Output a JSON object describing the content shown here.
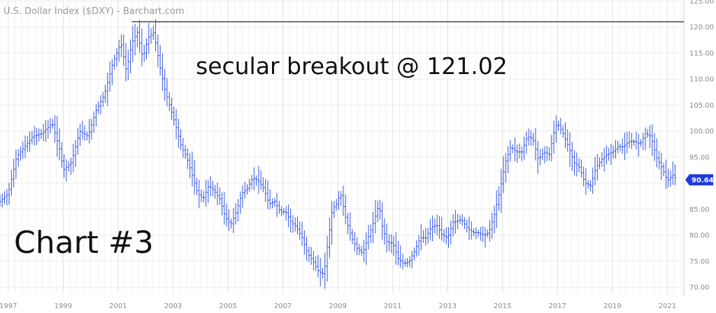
{
  "chart_data": {
    "type": "bar",
    "style": "ohlc",
    "title": "U.S. Dollar Index ($DXY) - Barchart.com",
    "xlabel": "",
    "ylabel": "",
    "xlim": [
      1996.7,
      2021.6
    ],
    "ylim": [
      68.8,
      125.2
    ],
    "x_ticks": [
      "1997",
      "1999",
      "2001",
      "2003",
      "2005",
      "2007",
      "2009",
      "2011",
      "2013",
      "2015",
      "2017",
      "2019",
      "2021"
    ],
    "y_ticks": [
      "70.00",
      "75.00",
      "80.00",
      "85.00",
      "90.00",
      "95.00",
      "100.00",
      "105.00",
      "110.00",
      "115.00",
      "120.00",
      "125.00"
    ],
    "grid": true,
    "color": "#3355dd",
    "line_color": "#222222",
    "last_price": "90.64",
    "last_price_value": 90.64,
    "resistance_level": 121.02,
    "resistance_start": 2001.5,
    "annotation": "secular breakout @ 121.02",
    "label": "Chart #3",
    "series": [
      {
        "points": [
          [
            1996.7,
            86.5
          ],
          [
            1997.0,
            88.0
          ],
          [
            1997.3,
            95.0
          ],
          [
            1997.6,
            97.0
          ],
          [
            1997.9,
            99.0
          ],
          [
            1998.2,
            99.5
          ],
          [
            1998.6,
            101.5
          ],
          [
            1998.9,
            96.0
          ],
          [
            1999.0,
            92.5
          ],
          [
            1999.3,
            94.0
          ],
          [
            1999.6,
            100.0
          ],
          [
            1999.9,
            99.0
          ],
          [
            2000.2,
            104.0
          ],
          [
            2000.5,
            107.0
          ],
          [
            2000.8,
            113.0
          ],
          [
            2001.1,
            117.0
          ],
          [
            2001.3,
            111.5
          ],
          [
            2001.5,
            117.0
          ],
          [
            2001.7,
            119.0
          ],
          [
            2001.9,
            114.0
          ],
          [
            2002.1,
            118.0
          ],
          [
            2002.3,
            119.0
          ],
          [
            2002.5,
            113.0
          ],
          [
            2002.7,
            108.0
          ],
          [
            2002.9,
            104.5
          ],
          [
            2003.1,
            101.0
          ],
          [
            2003.3,
            97.0
          ],
          [
            2003.5,
            95.0
          ],
          [
            2003.7,
            91.5
          ],
          [
            2003.9,
            88.0
          ],
          [
            2004.1,
            87.0
          ],
          [
            2004.3,
            89.5
          ],
          [
            2004.5,
            88.5
          ],
          [
            2004.7,
            87.0
          ],
          [
            2004.9,
            83.5
          ],
          [
            2005.1,
            82.0
          ],
          [
            2005.3,
            84.5
          ],
          [
            2005.5,
            88.0
          ],
          [
            2005.7,
            89.0
          ],
          [
            2005.9,
            91.0
          ],
          [
            2006.1,
            90.5
          ],
          [
            2006.3,
            89.0
          ],
          [
            2006.5,
            86.0
          ],
          [
            2006.7,
            86.5
          ],
          [
            2006.9,
            84.5
          ],
          [
            2007.1,
            84.5
          ],
          [
            2007.3,
            82.5
          ],
          [
            2007.5,
            81.5
          ],
          [
            2007.7,
            79.5
          ],
          [
            2007.9,
            76.5
          ],
          [
            2008.1,
            75.0
          ],
          [
            2008.3,
            73.0
          ],
          [
            2008.5,
            72.5
          ],
          [
            2008.6,
            77.0
          ],
          [
            2008.8,
            85.0
          ],
          [
            2008.95,
            86.0
          ],
          [
            2009.1,
            88.0
          ],
          [
            2009.3,
            83.0
          ],
          [
            2009.5,
            79.5
          ],
          [
            2009.7,
            77.5
          ],
          [
            2009.9,
            76.5
          ],
          [
            2010.1,
            79.5
          ],
          [
            2010.3,
            82.5
          ],
          [
            2010.5,
            86.0
          ],
          [
            2010.6,
            82.0
          ],
          [
            2010.8,
            78.5
          ],
          [
            2011.0,
            78.5
          ],
          [
            2011.2,
            75.5
          ],
          [
            2011.4,
            74.5
          ],
          [
            2011.6,
            75.0
          ],
          [
            2011.8,
            77.0
          ],
          [
            2012.0,
            79.5
          ],
          [
            2012.2,
            79.5
          ],
          [
            2012.4,
            81.5
          ],
          [
            2012.6,
            82.0
          ],
          [
            2012.8,
            80.0
          ],
          [
            2013.0,
            79.5
          ],
          [
            2013.2,
            82.5
          ],
          [
            2013.5,
            83.0
          ],
          [
            2013.7,
            81.5
          ],
          [
            2013.9,
            80.5
          ],
          [
            2014.1,
            80.5
          ],
          [
            2014.3,
            80.0
          ],
          [
            2014.5,
            80.5
          ],
          [
            2014.7,
            84.0
          ],
          [
            2014.9,
            88.5
          ],
          [
            2015.1,
            94.0
          ],
          [
            2015.3,
            97.0
          ],
          [
            2015.5,
            96.0
          ],
          [
            2015.7,
            96.0
          ],
          [
            2015.9,
            99.0
          ],
          [
            2016.1,
            98.5
          ],
          [
            2016.3,
            94.5
          ],
          [
            2016.5,
            96.0
          ],
          [
            2016.7,
            95.5
          ],
          [
            2016.9,
            100.5
          ],
          [
            2017.0,
            101.5
          ],
          [
            2017.2,
            99.5
          ],
          [
            2017.4,
            97.0
          ],
          [
            2017.6,
            94.0
          ],
          [
            2017.8,
            93.0
          ],
          [
            2018.0,
            90.0
          ],
          [
            2018.2,
            89.5
          ],
          [
            2018.4,
            93.0
          ],
          [
            2018.6,
            94.5
          ],
          [
            2018.8,
            95.5
          ],
          [
            2019.0,
            96.0
          ],
          [
            2019.2,
            97.0
          ],
          [
            2019.4,
            97.0
          ],
          [
            2019.6,
            98.0
          ],
          [
            2019.8,
            98.0
          ],
          [
            2020.0,
            97.5
          ],
          [
            2020.2,
            99.5
          ],
          [
            2020.4,
            99.0
          ],
          [
            2020.6,
            95.0
          ],
          [
            2020.8,
            93.0
          ],
          [
            2021.0,
            90.5
          ],
          [
            2021.2,
            91.5
          ],
          [
            2021.35,
            90.64
          ]
        ]
      }
    ]
  }
}
